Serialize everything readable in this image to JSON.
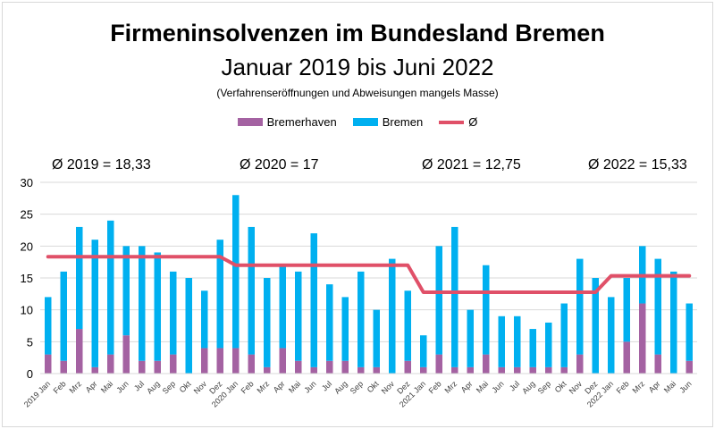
{
  "chart_data": {
    "type": "bar",
    "stacked": true,
    "title": "Firmeninsolvenzen im Bundesland Bremen",
    "subtitle": "Januar 2019 bis Juni 2022",
    "note": "(Verfahrenseröffnungen und Abweisungen mangels Masse)",
    "legend_position": "top",
    "grid": true,
    "ylim": [
      0,
      30
    ],
    "yticks": [
      0,
      5,
      10,
      15,
      20,
      25,
      30
    ],
    "categories": [
      "2019 Jan",
      "Feb",
      "Mrz",
      "Apr",
      "Mai",
      "Jun",
      "Jul",
      "Aug",
      "Sep",
      "Okt",
      "Nov",
      "Dez",
      "2020 Jan",
      "Feb",
      "Mrz",
      "Apr",
      "Mai",
      "Jun",
      "Jul",
      "Aug",
      "Sep",
      "Okt",
      "Nov",
      "Dez",
      "2021 Jan",
      "Feb",
      "Mrz",
      "Apr",
      "Mai",
      "Jun",
      "Jul",
      "Aug",
      "Sep",
      "Okt",
      "Nov",
      "Dez",
      "2022 Jan",
      "Feb",
      "Mrz",
      "Apr",
      "Mai",
      "Jun"
    ],
    "series": [
      {
        "name": "Bremerhaven",
        "color": "#a462a2",
        "values": [
          3,
          2,
          7,
          1,
          3,
          6,
          2,
          2,
          3,
          0,
          4,
          4,
          4,
          3,
          1,
          4,
          2,
          1,
          2,
          2,
          1,
          1,
          0,
          2,
          1,
          3,
          1,
          1,
          3,
          1,
          1,
          1,
          1,
          1,
          3,
          0,
          0,
          5,
          11,
          3,
          0,
          2
        ]
      },
      {
        "name": "Bremen",
        "color": "#00b0f0",
        "values": [
          9,
          14,
          16,
          20,
          21,
          14,
          18,
          17,
          13,
          15,
          9,
          17,
          24,
          20,
          14,
          13,
          14,
          21,
          12,
          10,
          15,
          9,
          18,
          11,
          5,
          17,
          22,
          9,
          14,
          8,
          8,
          6,
          7,
          10,
          15,
          15,
          12,
          10,
          9,
          15,
          16,
          9
        ]
      },
      {
        "name": "Ø",
        "type": "line",
        "color": "#e05068",
        "values": [
          18.33,
          18.33,
          18.33,
          18.33,
          18.33,
          18.33,
          18.33,
          18.33,
          18.33,
          18.33,
          18.33,
          18.33,
          17,
          17,
          17,
          17,
          17,
          17,
          17,
          17,
          17,
          17,
          17,
          17,
          12.75,
          12.75,
          12.75,
          12.75,
          12.75,
          12.75,
          12.75,
          12.75,
          12.75,
          12.75,
          12.75,
          12.75,
          15.33,
          15.33,
          15.33,
          15.33,
          15.33,
          15.33
        ]
      }
    ],
    "annotations": [
      "Ø 2019 = 18,33",
      "Ø 2020 = 17",
      "Ø 2021 = 12,75",
      "Ø 2022 = 15,33"
    ]
  }
}
